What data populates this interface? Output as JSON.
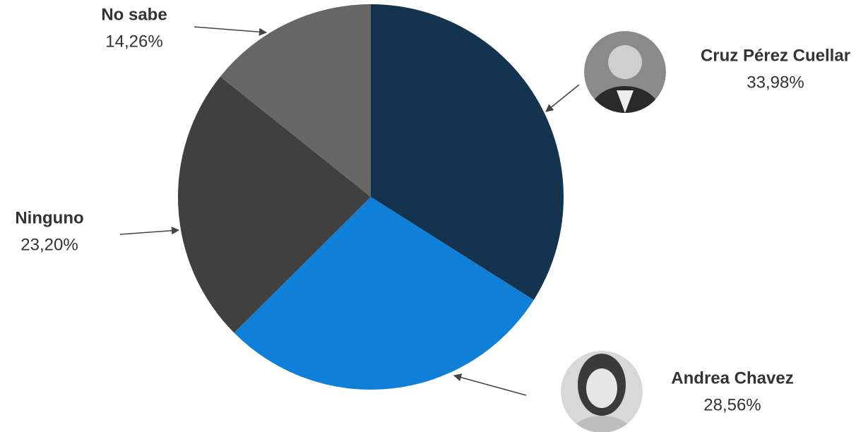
{
  "chart_data": {
    "type": "pie",
    "categories": [
      "Cruz Pérez Cuellar",
      "Andrea Chavez",
      "Ninguno",
      "No sabe"
    ],
    "values": [
      33.98,
      28.56,
      23.2,
      14.26
    ],
    "value_labels": [
      "33,98%",
      "28,56%",
      "23,20%",
      "14,26%"
    ],
    "colors": [
      "#14334f",
      "#0f7fd8",
      "#404040",
      "#666666"
    ]
  }
}
